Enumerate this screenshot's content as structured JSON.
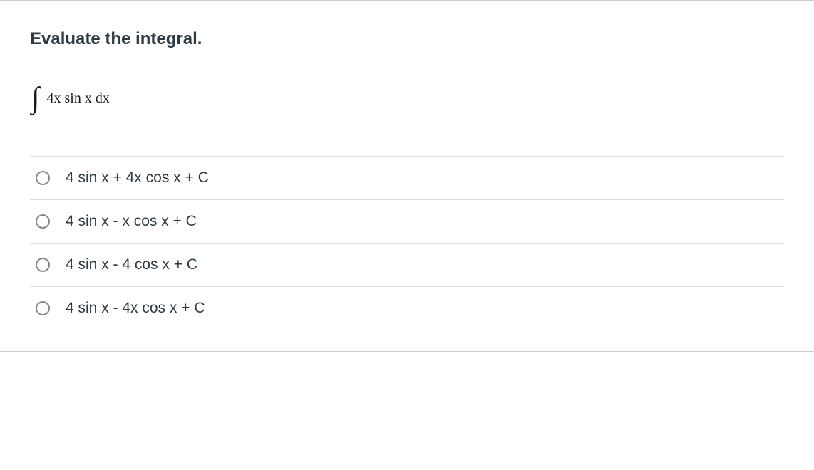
{
  "question": {
    "title": "Evaluate the integral.",
    "integral_body": "4x sin x dx"
  },
  "options": [
    {
      "label": "4 sin x + 4x cos x + C"
    },
    {
      "label": "4 sin x - x cos x + C"
    },
    {
      "label": "4 sin x - 4 cos x + C"
    },
    {
      "label": "4 sin x - 4x cos x + C"
    }
  ],
  "colors": {
    "text_primary": "#2d3b45",
    "border": "#dddddd",
    "radio_border": "#888888",
    "background": "#ffffff"
  },
  "typography": {
    "title_fontsize": 24,
    "title_fontweight": 700,
    "option_fontsize": 21,
    "integral_fontsize": 20,
    "font_family_main": "Helvetica Neue",
    "font_family_math": "Times New Roman"
  }
}
